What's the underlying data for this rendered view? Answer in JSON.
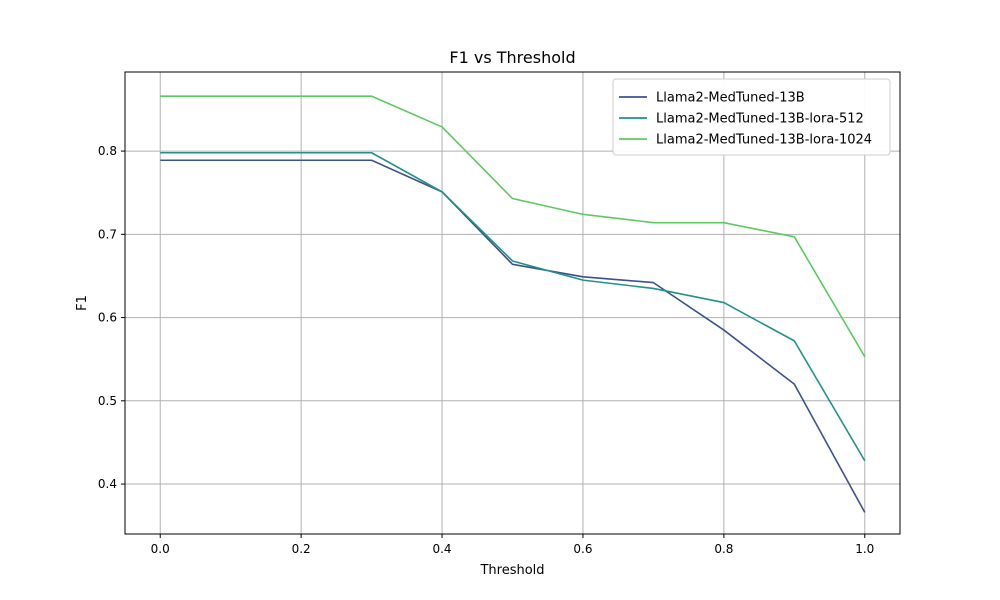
{
  "chart_data": {
    "type": "line",
    "title": "F1 vs Threshold",
    "xlabel": "Threshold",
    "ylabel": "F1",
    "x": [
      0.0,
      0.1,
      0.2,
      0.3,
      0.4,
      0.5,
      0.6,
      0.7,
      0.8,
      0.9,
      1.0
    ],
    "xlim": [
      -0.05,
      1.05
    ],
    "ylim": [
      0.34,
      0.895
    ],
    "xticks": [
      0.0,
      0.2,
      0.4,
      0.6,
      0.8,
      1.0
    ],
    "xtick_labels": [
      "0.0",
      "0.2",
      "0.4",
      "0.6",
      "0.8",
      "1.0"
    ],
    "yticks": [
      0.4,
      0.5,
      0.6,
      0.7,
      0.8
    ],
    "ytick_labels": [
      "0.4",
      "0.5",
      "0.6",
      "0.7",
      "0.8"
    ],
    "grid": true,
    "legend_position": "top-right",
    "series": [
      {
        "name": "Llama2-MedTuned-13B",
        "color": "#3b528b",
        "values": [
          0.789,
          0.789,
          0.789,
          0.789,
          0.751,
          0.664,
          0.649,
          0.642,
          0.585,
          0.52,
          0.366
        ]
      },
      {
        "name": "Llama2-MedTuned-13B-lora-512",
        "color": "#21918c",
        "values": [
          0.798,
          0.798,
          0.798,
          0.798,
          0.751,
          0.668,
          0.645,
          0.635,
          0.618,
          0.572,
          0.428
        ]
      },
      {
        "name": "Llama2-MedTuned-13B-lora-1024",
        "color": "#5ec962",
        "values": [
          0.866,
          0.866,
          0.866,
          0.866,
          0.829,
          0.743,
          0.724,
          0.714,
          0.714,
          0.697,
          0.553
        ]
      }
    ]
  }
}
